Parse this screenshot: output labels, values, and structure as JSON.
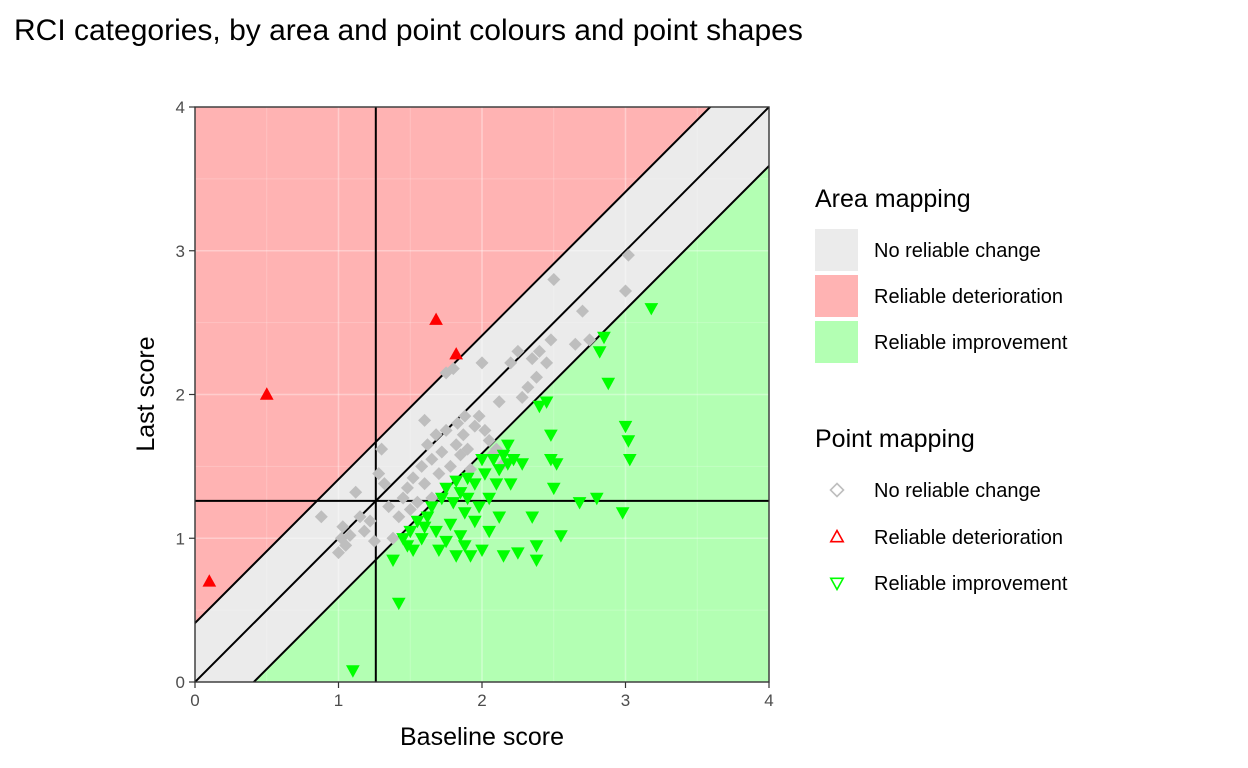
{
  "chart_data": {
    "type": "scatter",
    "title": "RCI categories, by area and point colours and point shapes",
    "xlabel": "Baseline score",
    "ylabel": "Last score",
    "xlim": [
      0,
      4
    ],
    "ylim": [
      0,
      4
    ],
    "xticks": [
      "0",
      "1",
      "2",
      "3",
      "4"
    ],
    "yticks": [
      "0",
      "1",
      "2",
      "3",
      "4"
    ],
    "grid": true,
    "reference_lines": {
      "vertical_x": 1.26,
      "horizontal_y": 1.26,
      "identity_slope": 1,
      "rci_band_halfwidth": 0.41
    },
    "areas": [
      {
        "name": "No reliable change",
        "color": "#EBEBEB"
      },
      {
        "name": "Reliable deterioration",
        "color": "#FFB3B3"
      },
      {
        "name": "Reliable improvement",
        "color": "#B3FFB3"
      }
    ],
    "legend": {
      "placement": "right",
      "area_title": "Area mapping",
      "point_title": "Point mapping",
      "area_items": [
        {
          "label": "No reliable change",
          "color": "#EBEBEB"
        },
        {
          "label": "Reliable deterioration",
          "color": "#FFB3B3"
        },
        {
          "label": "Reliable improvement",
          "color": "#B3FFB3"
        }
      ],
      "point_items": [
        {
          "label": "No reliable change",
          "color": "#BEBEBE",
          "shape": "diamond"
        },
        {
          "label": "Reliable deterioration",
          "color": "#FF0000",
          "shape": "triangle-up"
        },
        {
          "label": "Reliable improvement",
          "color": "#00FF00",
          "shape": "triangle-down"
        }
      ]
    },
    "series": [
      {
        "name": "No reliable change",
        "color": "#BEBEBE",
        "shape": "diamond",
        "points": [
          [
            0.88,
            1.15
          ],
          [
            1.0,
            0.9
          ],
          [
            1.02,
            1.0
          ],
          [
            1.03,
            1.08
          ],
          [
            1.05,
            0.95
          ],
          [
            1.08,
            1.02
          ],
          [
            1.12,
            1.32
          ],
          [
            1.15,
            1.15
          ],
          [
            1.18,
            1.05
          ],
          [
            1.22,
            1.12
          ],
          [
            1.25,
            0.98
          ],
          [
            1.28,
            1.45
          ],
          [
            1.3,
            1.62
          ],
          [
            1.32,
            1.38
          ],
          [
            1.35,
            1.22
          ],
          [
            1.38,
            1.0
          ],
          [
            1.42,
            1.15
          ],
          [
            1.45,
            1.28
          ],
          [
            1.48,
            1.35
          ],
          [
            1.5,
            1.2
          ],
          [
            1.52,
            1.42
          ],
          [
            1.55,
            1.25
          ],
          [
            1.58,
            1.5
          ],
          [
            1.6,
            1.38
          ],
          [
            1.6,
            1.82
          ],
          [
            1.62,
            1.65
          ],
          [
            1.65,
            1.28
          ],
          [
            1.65,
            1.55
          ],
          [
            1.68,
            1.72
          ],
          [
            1.7,
            1.45
          ],
          [
            1.72,
            1.6
          ],
          [
            1.75,
            1.75
          ],
          [
            1.75,
            2.15
          ],
          [
            1.78,
            1.5
          ],
          [
            1.8,
            2.18
          ],
          [
            1.82,
            1.65
          ],
          [
            1.83,
            1.8
          ],
          [
            1.85,
            1.58
          ],
          [
            1.87,
            1.72
          ],
          [
            1.88,
            1.85
          ],
          [
            1.9,
            1.62
          ],
          [
            1.92,
            1.48
          ],
          [
            1.95,
            1.78
          ],
          [
            1.98,
            1.85
          ],
          [
            2.0,
            2.22
          ],
          [
            2.02,
            1.75
          ],
          [
            2.05,
            1.68
          ],
          [
            2.07,
            1.58
          ],
          [
            2.1,
            1.62
          ],
          [
            2.12,
            1.95
          ],
          [
            2.15,
            1.52
          ],
          [
            2.2,
            2.22
          ],
          [
            2.25,
            2.3
          ],
          [
            2.28,
            1.98
          ],
          [
            2.32,
            2.05
          ],
          [
            2.35,
            2.25
          ],
          [
            2.38,
            2.12
          ],
          [
            2.4,
            2.3
          ],
          [
            2.45,
            2.22
          ],
          [
            2.48,
            2.38
          ],
          [
            2.5,
            2.8
          ],
          [
            2.65,
            2.35
          ],
          [
            2.7,
            2.58
          ],
          [
            2.75,
            2.38
          ],
          [
            3.0,
            2.72
          ],
          [
            3.02,
            2.97
          ]
        ]
      },
      {
        "name": "Reliable deterioration",
        "color": "#FF0000",
        "shape": "triangle-up",
        "points": [
          [
            0.1,
            0.7
          ],
          [
            0.5,
            2.0
          ],
          [
            1.68,
            2.52
          ],
          [
            1.82,
            2.28
          ]
        ]
      },
      {
        "name": "Reliable improvement",
        "color": "#00FF00",
        "shape": "triangle-down",
        "points": [
          [
            1.1,
            0.08
          ],
          [
            1.38,
            0.85
          ],
          [
            1.42,
            0.55
          ],
          [
            1.45,
            1.0
          ],
          [
            1.48,
            0.95
          ],
          [
            1.5,
            1.05
          ],
          [
            1.52,
            0.92
          ],
          [
            1.55,
            1.12
          ],
          [
            1.58,
            1.0
          ],
          [
            1.6,
            1.08
          ],
          [
            1.62,
            1.15
          ],
          [
            1.65,
            1.22
          ],
          [
            1.68,
            1.05
          ],
          [
            1.7,
            0.92
          ],
          [
            1.72,
            1.28
          ],
          [
            1.75,
            0.98
          ],
          [
            1.75,
            1.35
          ],
          [
            1.78,
            1.1
          ],
          [
            1.8,
            1.25
          ],
          [
            1.82,
            1.4
          ],
          [
            1.82,
            0.88
          ],
          [
            1.85,
            1.32
          ],
          [
            1.85,
            1.02
          ],
          [
            1.88,
            1.18
          ],
          [
            1.88,
            0.95
          ],
          [
            1.9,
            1.42
          ],
          [
            1.9,
            1.28
          ],
          [
            1.92,
            0.88
          ],
          [
            1.95,
            1.38
          ],
          [
            1.95,
            1.12
          ],
          [
            1.98,
            1.22
          ],
          [
            2.0,
            1.55
          ],
          [
            2.0,
            0.92
          ],
          [
            2.02,
            1.45
          ],
          [
            2.05,
            1.28
          ],
          [
            2.05,
            1.05
          ],
          [
            2.08,
            1.55
          ],
          [
            2.1,
            1.38
          ],
          [
            2.12,
            1.48
          ],
          [
            2.12,
            1.15
          ],
          [
            2.15,
            1.58
          ],
          [
            2.15,
            0.88
          ],
          [
            2.18,
            1.65
          ],
          [
            2.18,
            1.52
          ],
          [
            2.2,
            1.38
          ],
          [
            2.22,
            1.55
          ],
          [
            2.25,
            0.9
          ],
          [
            2.28,
            1.52
          ],
          [
            2.35,
            1.15
          ],
          [
            2.38,
            0.95
          ],
          [
            2.38,
            0.85
          ],
          [
            2.4,
            1.92
          ],
          [
            2.45,
            1.95
          ],
          [
            2.48,
            1.72
          ],
          [
            2.48,
            1.55
          ],
          [
            2.5,
            1.35
          ],
          [
            2.52,
            1.52
          ],
          [
            2.55,
            1.02
          ],
          [
            2.68,
            1.25
          ],
          [
            2.8,
            1.28
          ],
          [
            2.82,
            2.3
          ],
          [
            2.85,
            2.4
          ],
          [
            2.88,
            2.08
          ],
          [
            2.98,
            1.18
          ],
          [
            3.0,
            1.78
          ],
          [
            3.02,
            1.68
          ],
          [
            3.03,
            1.55
          ],
          [
            3.18,
            2.6
          ]
        ]
      }
    ]
  }
}
